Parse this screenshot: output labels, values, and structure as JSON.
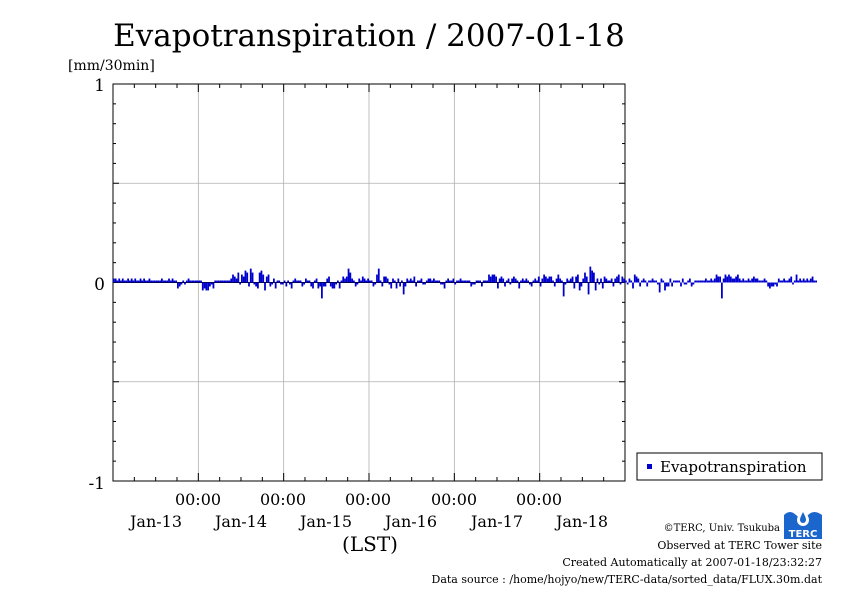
{
  "chart_data": {
    "type": "bar",
    "title": "Evapotranspiration / 2007-01-18",
    "ylabel": "[mm/30min]",
    "xlabel": "(LST)",
    "ylim": [
      -1,
      1
    ],
    "yticks": [
      "1",
      "0",
      "-1"
    ],
    "ygrid_values": [
      -0.5,
      0.5
    ],
    "x_range_days": [
      0,
      6
    ],
    "x_time_labels": [
      "00:00",
      "00:00",
      "00:00",
      "00:00",
      "00:00"
    ],
    "x_date_labels": [
      "Jan-13",
      "Jan-14",
      "Jan-15",
      "Jan-16",
      "Jan-17",
      "Jan-18"
    ],
    "grid": true,
    "legend_position": "right",
    "series": [
      {
        "name": "Evapotranspiration",
        "color": "#0000cc",
        "x_start_day": 0,
        "step_hours": 0.5,
        "values": [
          0.02,
          0.02,
          0.01,
          0.02,
          0.01,
          0.02,
          0.01,
          0.01,
          0.02,
          0.01,
          0.02,
          0.01,
          0.02,
          0.01,
          0.01,
          0.02,
          0.01,
          0.02,
          0.01,
          0.01,
          0.02,
          0.01,
          0.01,
          0.01,
          0.01,
          0.01,
          0.01,
          0.02,
          0.01,
          0.01,
          0.01,
          0.02,
          0.01,
          0.02,
          0.01,
          0.01,
          -0.03,
          -0.02,
          -0.01,
          0.01,
          -0.01,
          0.01,
          0.02,
          0.01,
          0.01,
          0.01,
          0.01,
          0.01,
          0.01,
          0.01,
          -0.04,
          -0.03,
          -0.04,
          -0.04,
          -0.02,
          -0.01,
          -0.03,
          0.01,
          0.01,
          0.01,
          0.01,
          0.01,
          0.01,
          0.01,
          0.01,
          0.01,
          0.02,
          0.04,
          0.03,
          0.02,
          0.05,
          -0.01,
          0.04,
          0.03,
          0.06,
          0.05,
          -0.02,
          0.07,
          0.05,
          -0.01,
          -0.02,
          -0.03,
          0.05,
          0.06,
          0.04,
          -0.04,
          0.03,
          0.04,
          -0.02,
          -0.01,
          0.02,
          -0.03,
          0.01,
          0.01,
          -0.01,
          -0.01,
          0.01,
          -0.02,
          0.01,
          -0.01,
          -0.03,
          0.01,
          0.02,
          0.01,
          0.01,
          0.01,
          -0.02,
          -0.01,
          0.02,
          0.01,
          0.01,
          -0.02,
          -0.03,
          0.01,
          0.02,
          -0.03,
          -0.02,
          -0.08,
          -0.02,
          -0.02,
          0.02,
          0.03,
          -0.02,
          -0.03,
          -0.03,
          -0.01,
          0.01,
          -0.03,
          0.01,
          0.03,
          0.02,
          0.03,
          0.07,
          0.05,
          0.02,
          0.01,
          -0.02,
          -0.01,
          0.02,
          0.01,
          0.03,
          0.02,
          0.01,
          0.02,
          0.01,
          0.01,
          -0.02,
          -0.01,
          0.04,
          0.07,
          0.01,
          -0.02,
          0.03,
          0.03,
          0.02,
          -0.01,
          -0.03,
          0.02,
          0.01,
          -0.03,
          0.02,
          -0.02,
          0.01,
          -0.06,
          -0.02,
          0.02,
          0.01,
          0.02,
          0.01,
          0.03,
          -0.02,
          0.01,
          0.01,
          0.02,
          -0.01,
          -0.01,
          0.01,
          0.02,
          0.02,
          0.01,
          0.02,
          0.01,
          0.01,
          0.01,
          -0.01,
          -0.01,
          -0.03,
          0.01,
          0.02,
          0.01,
          0.01,
          0.02,
          -0.01,
          0.01,
          0.01,
          0.02,
          0.01,
          0.01,
          0.01,
          0.01,
          0.01,
          -0.02,
          -0.01,
          -0.01,
          0.01,
          0.01,
          0.01,
          -0.02,
          0.01,
          0.01,
          0.01,
          0.04,
          0.03,
          0.04,
          0.04,
          0.03,
          -0.03,
          0.02,
          0.03,
          0.02,
          -0.02,
          0.01,
          0.02,
          -0.01,
          0.02,
          0.03,
          0.02,
          0.01,
          -0.03,
          0.01,
          0.02,
          0.01,
          0.02,
          0.01,
          -0.01,
          -0.02,
          0.01,
          0.02,
          0.01,
          0.03,
          -0.02,
          0.02,
          0.04,
          0.03,
          0.02,
          0.03,
          0.03,
          0.01,
          -0.02,
          0.02,
          0.04,
          0.02,
          0.01,
          -0.07,
          -0.01,
          0.02,
          0.01,
          0.02,
          0.03,
          -0.03,
          0.03,
          0.04,
          -0.04,
          -0.02,
          0.02,
          0.05,
          0.03,
          -0.06,
          0.08,
          0.06,
          0.05,
          -0.04,
          0.02,
          -0.01,
          0.02,
          -0.03,
          0.03,
          0.02,
          0.01,
          0.01,
          0.02,
          -0.02,
          0.02,
          0.03,
          0.04,
          -0.01,
          0.03,
          0.02,
          0.01,
          -0.01,
          0.02,
          0.01,
          -0.03,
          0.04,
          0.03,
          0.02,
          -0.02,
          0.01,
          0.02,
          0.01,
          -0.02,
          0.01,
          0.01,
          0.02,
          0.01,
          0.01,
          -0.01,
          -0.05,
          0.02,
          0.01,
          -0.04,
          -0.02,
          -0.02,
          0.02,
          -0.02,
          0.01,
          0.01,
          0.01,
          0.01,
          -0.02,
          0.02,
          -0.01,
          -0.01,
          0.01,
          0.02,
          -0.02,
          -0.01,
          0.01,
          0.01,
          0.01,
          0.01,
          0.01,
          0.01,
          0.02,
          0.01,
          0.01,
          0.02,
          0.01,
          0.02,
          0.04,
          0.03,
          0.03,
          -0.08,
          0.02,
          0.04,
          0.03,
          0.04,
          0.03,
          0.02,
          0.02,
          0.03,
          0.04,
          0.02,
          0.01,
          0.02,
          0.01,
          0.01,
          0.02,
          0.01,
          0.02,
          0.03,
          0.02,
          0.02,
          0.01,
          0.01,
          0.01,
          0.02,
          0.01,
          -0.02,
          -0.03,
          -0.02,
          -0.02,
          -0.01,
          -0.02,
          0.02,
          0.01,
          0.01,
          0.02,
          0.01,
          0.01,
          0.02,
          0.03,
          -0.01,
          0.01,
          0.04,
          0.01,
          0.02,
          0.01,
          0.02,
          0.01,
          0.02,
          0.01,
          0.02,
          0.03,
          0.01,
          0.01
        ]
      }
    ]
  },
  "footer": {
    "copyright": "©TERC, Univ. Tsukuba",
    "site": "Observed at TERC Tower site",
    "created": "Created Automatically at 2007-01-18/23:32:27",
    "source": "Data source : /home/hojyo/new/TERC-data/sorted_data/FLUX.30m.dat"
  },
  "logo": {
    "text": "TERC",
    "color": "#1a66cc",
    "icon": "terc-logo-icon"
  }
}
